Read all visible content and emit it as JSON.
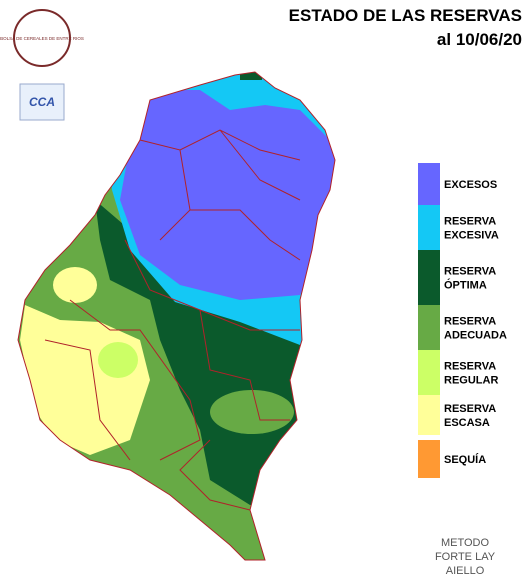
{
  "title": "ESTADO DE LAS RESERVAS",
  "date": "al 10/06/20",
  "logo": {
    "text": "BOLSA DE CEREALES DE ENTRE RIOS",
    "badge": "CCA"
  },
  "legend": {
    "items": [
      {
        "lines": [
          "EXCESOS"
        ],
        "color": "#6666ff"
      },
      {
        "lines": [
          "RESERVA",
          "EXCESIVA"
        ],
        "color": "#14c8f5"
      },
      {
        "lines": [
          "RESERVA",
          "ÓPTIMA"
        ],
        "color": "#0b5a2c"
      },
      {
        "lines": [
          "RESERVA",
          "ADECUADA"
        ],
        "color": "#67aa45"
      },
      {
        "lines": [
          "RESERVA",
          "REGULAR"
        ],
        "color": "#ccff66"
      },
      {
        "lines": [
          "RESERVA",
          "ESCASA"
        ],
        "color": "#ffff99"
      },
      {
        "lines": [
          "SEQUÍA"
        ],
        "color": "#ff9933"
      }
    ]
  },
  "method": [
    "METODO",
    "FORTE LAY",
    "AIELLO"
  ]
}
